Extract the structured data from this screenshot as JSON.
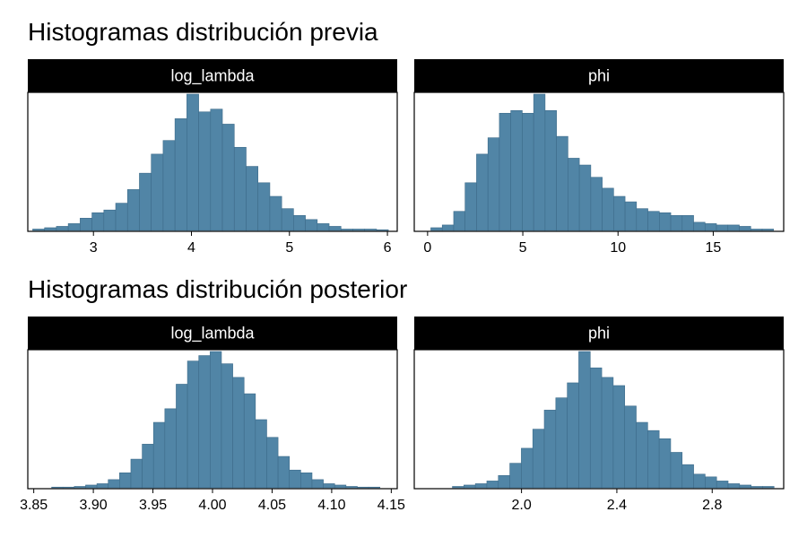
{
  "titles": {
    "prior": "Histogramas distribución previa",
    "posterior": "Histogramas distribución posterior"
  },
  "colors": {
    "bar_fill": "#5185a6",
    "bar_stroke": "#3d6b8a",
    "strip_bg": "#000000",
    "strip_text": "#ffffff",
    "panel_border": "#000000"
  },
  "chart_data": [
    {
      "type": "bar",
      "title": "log_lambda",
      "group": "prior",
      "xlim": [
        2.33,
        6.1
      ],
      "ticks": [
        3,
        4,
        5,
        6
      ],
      "tick_labels": [
        "3",
        "4",
        "5",
        "6"
      ],
      "bin_start": 2.38,
      "bin_width": 0.121,
      "values": [
        1,
        2,
        3,
        5,
        9,
        13,
        15,
        20,
        30,
        42,
        56,
        66,
        82,
        100,
        87,
        89,
        78,
        61,
        47,
        35,
        25,
        16,
        11,
        8,
        5,
        3,
        1,
        1,
        1,
        0.5
      ]
    },
    {
      "type": "bar",
      "title": "phi",
      "group": "prior",
      "xlim": [
        -0.7,
        18.7
      ],
      "ticks": [
        0,
        5,
        10,
        15
      ],
      "tick_labels": [
        "0",
        "5",
        "10",
        "15"
      ],
      "bin_start": 0.17,
      "bin_width": 0.6,
      "values": [
        2,
        4,
        14,
        35,
        56,
        68,
        86,
        88,
        86,
        100,
        88,
        69,
        53,
        48,
        39,
        31,
        25,
        21,
        16,
        14,
        13,
        11,
        11,
        6,
        5,
        4,
        4,
        3,
        1,
        1
      ]
    },
    {
      "type": "bar",
      "title": "log_lambda",
      "group": "posterior",
      "xlim": [
        3.845,
        4.155
      ],
      "ticks": [
        3.85,
        3.9,
        3.95,
        4.0,
        4.05,
        4.1,
        4.15
      ],
      "tick_labels": [
        "3.85",
        "3.90",
        "3.95",
        "4.00",
        "4.05",
        "4.10",
        "4.15"
      ],
      "bin_start": 3.865,
      "bin_width": 0.0095,
      "values": [
        0.5,
        0.5,
        1,
        2,
        3,
        6,
        11,
        21,
        32,
        48,
        58,
        76,
        93,
        97,
        100,
        91,
        81,
        69,
        50,
        37,
        23,
        13,
        11,
        6,
        3,
        2,
        1,
        0.5,
        0.5
      ]
    },
    {
      "type": "bar",
      "title": "phi",
      "group": "posterior",
      "xlim": [
        1.55,
        3.1
      ],
      "ticks": [
        2.0,
        2.4,
        2.8
      ],
      "tick_labels": [
        "2.0",
        "2.4",
        "2.8"
      ],
      "bin_start": 1.71,
      "bin_width": 0.0482,
      "values": [
        1,
        2,
        3,
        5,
        9,
        18,
        29,
        43,
        57,
        66,
        77,
        100,
        88,
        81,
        75,
        60,
        48,
        42,
        36,
        26,
        17,
        10,
        8,
        5,
        3,
        2,
        1,
        1
      ]
    }
  ]
}
